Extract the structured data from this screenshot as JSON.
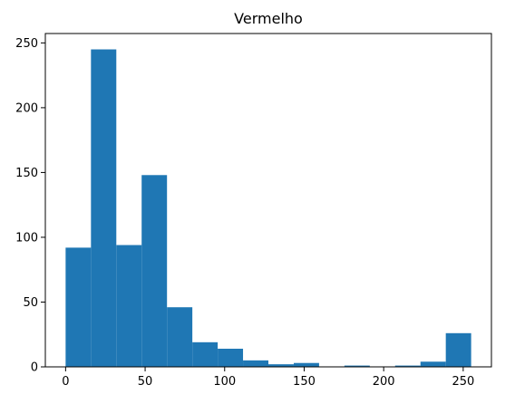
{
  "chart_data": {
    "type": "bar",
    "title": "Vermelho",
    "xlabel": "",
    "ylabel": "",
    "xlim": [
      -12.75,
      267.75
    ],
    "ylim": [
      0,
      257.25
    ],
    "bin_edges": [
      0,
      15.94,
      31.88,
      47.81,
      63.75,
      79.69,
      95.63,
      111.56,
      127.5,
      143.44,
      159.38,
      175.31,
      191.25,
      207.19,
      223.13,
      239.06,
      255
    ],
    "values": [
      92,
      245,
      94,
      148,
      46,
      19,
      14,
      5,
      2,
      3,
      0,
      1,
      0,
      1,
      4,
      26
    ],
    "x_ticks": [
      0,
      50,
      100,
      150,
      200,
      250
    ],
    "x_tick_labels": [
      "0",
      "50",
      "100",
      "150",
      "200",
      "250"
    ],
    "y_ticks": [
      0,
      50,
      100,
      150,
      200,
      250
    ],
    "y_tick_labels": [
      "0",
      "50",
      "100",
      "150",
      "200",
      "250"
    ],
    "grid": false,
    "bar_color": "#1f77b4"
  }
}
